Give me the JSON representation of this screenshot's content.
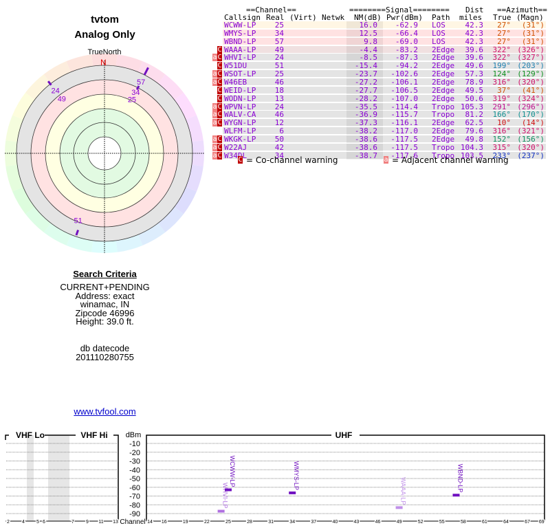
{
  "header": {
    "site": "tvtom",
    "mode": "Analog Only"
  },
  "polar": {
    "north_label": "TrueNorth",
    "n": "N",
    "marks": [
      {
        "label": "57",
        "az": 27
      },
      {
        "label": "34",
        "az": 27
      },
      {
        "label": "25",
        "az": 27
      },
      {
        "label": "24",
        "az": 322
      },
      {
        "label": "49",
        "az": 322
      },
      {
        "label": "51",
        "az": 199
      }
    ]
  },
  "table": {
    "group_headers": {
      "channel": "==Channel==",
      "signal": "========Signal========",
      "dist": "Dist",
      "azimuth": "==Azimuth=="
    },
    "columns": {
      "callsign": "Callsign",
      "real": "Real",
      "virt": "(Virt)",
      "netwk": "Netwk",
      "nm": "NM(dB)",
      "pwr": "Pwr(dBm)",
      "path": "Path",
      "miles": "miles",
      "true": "True",
      "magn": "(Magn)"
    },
    "rows": [
      {
        "call": "WCWW-LP",
        "real": "25",
        "nm": "16.0",
        "pwr": "-62.9",
        "path": "LOS",
        "dist": "42.3",
        "true": "27°",
        "magn": "(31°)",
        "az_color": "#d05000",
        "bg": "#fff6e4",
        "a": false,
        "c": false
      },
      {
        "call": "WMYS-LP",
        "real": "34",
        "nm": "12.5",
        "pwr": "-66.4",
        "path": "LOS",
        "dist": "42.3",
        "true": "27°",
        "magn": "(31°)",
        "az_color": "#d05000",
        "bg": "#ffe2e2",
        "a": false,
        "c": false
      },
      {
        "call": "WBND-LP",
        "real": "57",
        "nm": "9.8",
        "pwr": "-69.0",
        "path": "LOS",
        "dist": "42.3",
        "true": "27°",
        "magn": "(31°)",
        "az_color": "#d05000",
        "bg": "#ffe2e2",
        "a": false,
        "c": false
      },
      {
        "call": "WAAA-LP",
        "real": "49",
        "nm": "-4.4",
        "pwr": "-83.2",
        "path": "2Edge",
        "dist": "39.6",
        "true": "322°",
        "magn": "(326°)",
        "az_color": "#d0106a",
        "bg": "#f0e0e0",
        "a": false,
        "c": true
      },
      {
        "call": "WHVI-LP",
        "real": "24",
        "nm": "-8.5",
        "pwr": "-87.3",
        "path": "2Edge",
        "dist": "39.6",
        "true": "322°",
        "magn": "(327°)",
        "az_color": "#d0106a",
        "bg": "#e4e4e4",
        "a": true,
        "c": true
      },
      {
        "call": "W51DU",
        "real": "51",
        "nm": "-15.4",
        "pwr": "-94.2",
        "path": "2Edge",
        "dist": "49.6",
        "true": "199°",
        "magn": "(203°)",
        "az_color": "#2080b0",
        "bg": "#e4e4e4",
        "a": false,
        "c": true
      },
      {
        "call": "WSOT-LP",
        "real": "25",
        "nm": "-23.7",
        "pwr": "-102.6",
        "path": "2Edge",
        "dist": "57.3",
        "true": "124°",
        "magn": "(129°)",
        "az_color": "#109020",
        "bg": "#e4e4e4",
        "a": true,
        "c": true
      },
      {
        "call": "W46EB",
        "real": "46",
        "nm": "-27.2",
        "pwr": "-106.1",
        "path": "2Edge",
        "dist": "78.9",
        "true": "316°",
        "magn": "(320°)",
        "az_color": "#d0106a",
        "bg": "#e4e4e4",
        "a": true,
        "c": true
      },
      {
        "call": "WEID-LP",
        "real": "18",
        "nm": "-27.7",
        "pwr": "-106.5",
        "path": "2Edge",
        "dist": "49.5",
        "true": "37°",
        "magn": "(41°)",
        "az_color": "#d05000",
        "bg": "#e4e4e4",
        "a": false,
        "c": true
      },
      {
        "call": "WODN-LP",
        "real": "13",
        "nm": "-28.2",
        "pwr": "-107.0",
        "path": "2Edge",
        "dist": "50.6",
        "true": "319°",
        "magn": "(324°)",
        "az_color": "#d0106a",
        "bg": "#e4e4e4",
        "a": false,
        "c": true
      },
      {
        "call": "WPVN-LP",
        "real": "24",
        "nm": "-35.5",
        "pwr": "-114.4",
        "path": "Tropo",
        "dist": "105.3",
        "true": "291°",
        "magn": "(296°)",
        "az_color": "#c01090",
        "bg": "#e4e4e4",
        "a": true,
        "c": true
      },
      {
        "call": "WALV-CA",
        "real": "46",
        "nm": "-36.9",
        "pwr": "-115.7",
        "path": "Tropo",
        "dist": "81.2",
        "true": "166°",
        "magn": "(170°)",
        "az_color": "#109090",
        "bg": "#e4e4e4",
        "a": true,
        "c": true
      },
      {
        "call": "WYGN-LP",
        "real": "12",
        "nm": "-37.3",
        "pwr": "-116.1",
        "path": "2Edge",
        "dist": "62.5",
        "true": "10°",
        "magn": "(14°)",
        "az_color": "#d01010",
        "bg": "#e4e4e4",
        "a": true,
        "c": true
      },
      {
        "call": "WLFM-LP",
        "real": "6",
        "nm": "-38.2",
        "pwr": "-117.0",
        "path": "2Edge",
        "dist": "79.6",
        "true": "316°",
        "magn": "(321°)",
        "az_color": "#d0106a",
        "bg": "#e4e4e4",
        "a": false,
        "c": false
      },
      {
        "call": "WKGK-LP",
        "real": "50",
        "nm": "-38.6",
        "pwr": "-117.5",
        "path": "2Edge",
        "dist": "49.8",
        "true": "152°",
        "magn": "(156°)",
        "az_color": "#109060",
        "bg": "#e4e4e4",
        "a": true,
        "c": true
      },
      {
        "call": "W22AJ",
        "real": "42",
        "nm": "-38.6",
        "pwr": "-117.5",
        "path": "Tropo",
        "dist": "104.3",
        "true": "315°",
        "magn": "(320°)",
        "az_color": "#d0106a",
        "bg": "#e4e4e4",
        "a": true,
        "c": true
      },
      {
        "call": "W34DL",
        "real": "34",
        "nm": "-38.7",
        "pwr": "-117.6",
        "path": "Tropo",
        "dist": "103.5",
        "true": "233°",
        "magn": "(237°)",
        "az_color": "#1030c0",
        "bg": "#e4e4e4",
        "a": true,
        "c": true
      }
    ],
    "badge_c": "C",
    "badge_a": "a",
    "legend_c": "= Co-channel warning",
    "legend_a": "= Adjacent channel warning"
  },
  "criteria": {
    "title": "Search Criteria",
    "lines": [
      "CURRENT+PENDING",
      "Address: exact",
      "winamac, IN",
      "Zipcode 46996",
      "Height: 39.0 ft."
    ],
    "db_label": "db datecode",
    "db_value": "201110280755",
    "link": "www.tvfool.com"
  },
  "spectrum": {
    "vhf_lo": "VHF Lo",
    "vhf_hi": "VHF Hi",
    "uhf": "UHF",
    "dbm": "dBm",
    "channel": "Channel",
    "y_ticks": [
      "-10",
      "-20",
      "-30",
      "-40",
      "-50",
      "-60",
      "-70",
      "-80",
      "-90"
    ],
    "vhf_ticks": [
      "2",
      "4",
      "5",
      "6",
      "7",
      "9",
      "11",
      "13"
    ],
    "uhf_ticks": [
      "14",
      "16",
      "19",
      "22",
      "25",
      "28",
      "31",
      "34",
      "37",
      "40",
      "43",
      "46",
      "49",
      "52",
      "55",
      "58",
      "61",
      "64",
      "67",
      "69"
    ],
    "bars": [
      {
        "call": "WHVI-LP",
        "ch": 24,
        "dbm": -87.3,
        "color": "#b070e0"
      },
      {
        "call": "WCWW-LP",
        "ch": 25,
        "dbm": -62.9,
        "color": "#7010c0"
      },
      {
        "call": "WMYS-LP",
        "ch": 34,
        "dbm": -66.4,
        "color": "#7010c0"
      },
      {
        "call": "WAAA-LP",
        "ch": 49,
        "dbm": -83.2,
        "color": "#c090e8"
      },
      {
        "call": "WBND-LP",
        "ch": 57,
        "dbm": -69.0,
        "color": "#7010c0"
      }
    ]
  }
}
